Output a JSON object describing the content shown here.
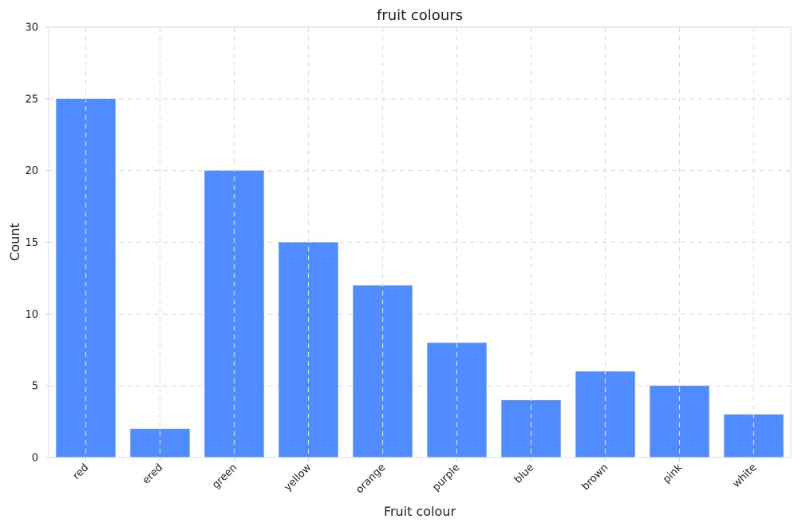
{
  "chart_data": {
    "type": "bar",
    "title": "fruit colours",
    "xlabel": "Fruit colour",
    "ylabel": "Count",
    "categories": [
      "red",
      "ered",
      "green",
      "yellow",
      "orange",
      "purple",
      "blue",
      "brown",
      "pink",
      "white"
    ],
    "values": [
      25,
      2,
      20,
      15,
      12,
      8,
      4,
      6,
      5,
      3
    ],
    "ylim": [
      0,
      30
    ],
    "yticks": [
      0,
      5,
      10,
      15,
      20,
      25,
      30
    ],
    "grid": true,
    "legend": "none",
    "bar_color": "#508cff"
  }
}
